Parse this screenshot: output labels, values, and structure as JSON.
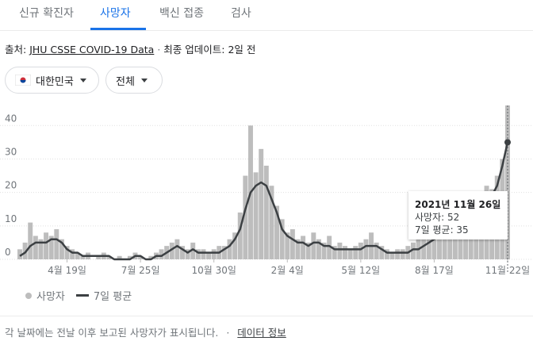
{
  "tabs": [
    "신규 확진자",
    "사망자",
    "백신 접종",
    "검사"
  ],
  "source": {
    "label": "출처:",
    "link": "JHU CSSE COVID-19 Data",
    "updated": "최종 업데이트: 2일 전"
  },
  "filters": [
    "대한민국",
    "전체"
  ],
  "chart_data": {
    "type": "bar_line",
    "categories": [
      null,
      null,
      null,
      null,
      null,
      null,
      null,
      null,
      null,
      "4월 19일",
      null,
      null,
      null,
      null,
      null,
      null,
      null,
      null,
      null,
      null,
      null,
      null,
      null,
      "7월 25일",
      null,
      null,
      null,
      null,
      null,
      null,
      null,
      null,
      null,
      null,
      null,
      null,
      null,
      "10월 30일",
      null,
      null,
      null,
      null,
      null,
      null,
      null,
      null,
      null,
      null,
      null,
      null,
      null,
      "2월 4일",
      null,
      null,
      null,
      null,
      null,
      null,
      null,
      null,
      null,
      null,
      null,
      null,
      null,
      "5월 12일",
      null,
      null,
      null,
      null,
      null,
      null,
      null,
      null,
      null,
      null,
      null,
      null,
      null,
      "8월 17일",
      null,
      null,
      null,
      null,
      null,
      null,
      null,
      null,
      null,
      null,
      null,
      null,
      null,
      "11월 22일"
    ],
    "series": [
      {
        "name": "사망자",
        "color": "#bdbdbd",
        "values": [
          3,
          5,
          11,
          7,
          6,
          8,
          7,
          9,
          6,
          4,
          3,
          2,
          1,
          2,
          0,
          1,
          2,
          1,
          0,
          1,
          0,
          1,
          2,
          1,
          0,
          1,
          2,
          3,
          4,
          5,
          6,
          4,
          3,
          5,
          3,
          3,
          2,
          3,
          4,
          4,
          6,
          8,
          14,
          25,
          40,
          26,
          33,
          28,
          22,
          16,
          12,
          8,
          9,
          6,
          7,
          5,
          8,
          6,
          5,
          7,
          4,
          5,
          4,
          3,
          4,
          5,
          6,
          8,
          5,
          4,
          3,
          2,
          3,
          3,
          4,
          5,
          6,
          7,
          6,
          9,
          10,
          8,
          11,
          10,
          12,
          13,
          15,
          17,
          20,
          22,
          21,
          25,
          30,
          52
        ]
      },
      {
        "name": "7일 평균",
        "color": "#3c4043",
        "values": [
          1,
          2,
          4,
          5,
          5,
          5,
          6,
          6,
          5,
          3,
          2,
          2,
          1,
          1,
          1,
          1,
          1,
          1,
          0,
          0,
          0,
          0,
          1,
          1,
          0,
          0,
          1,
          1,
          2,
          3,
          4,
          3,
          2,
          3,
          2,
          2,
          2,
          2,
          2,
          3,
          4,
          6,
          9,
          15,
          20,
          22,
          23,
          22,
          18,
          14,
          9,
          7,
          6,
          5,
          5,
          4,
          5,
          5,
          4,
          4,
          3,
          3,
          3,
          3,
          3,
          3,
          4,
          4,
          4,
          3,
          2,
          2,
          2,
          2,
          2,
          3,
          3,
          4,
          5,
          6,
          7,
          7,
          8,
          8,
          9,
          10,
          12,
          14,
          16,
          18,
          19,
          22,
          28,
          35
        ]
      }
    ],
    "ylim": [
      0,
      46
    ],
    "yticks": [
      0,
      10,
      20,
      30,
      40
    ],
    "grid": true,
    "tooltip": {
      "date": "2021년 11월 26일",
      "lines": [
        "사망자: 52",
        "7일 평균: 35"
      ]
    }
  },
  "footer": {
    "note": "각 날짜에는 전날 이후 보고된 사망자가 표시됩니다.",
    "link": "데이터 정보"
  }
}
